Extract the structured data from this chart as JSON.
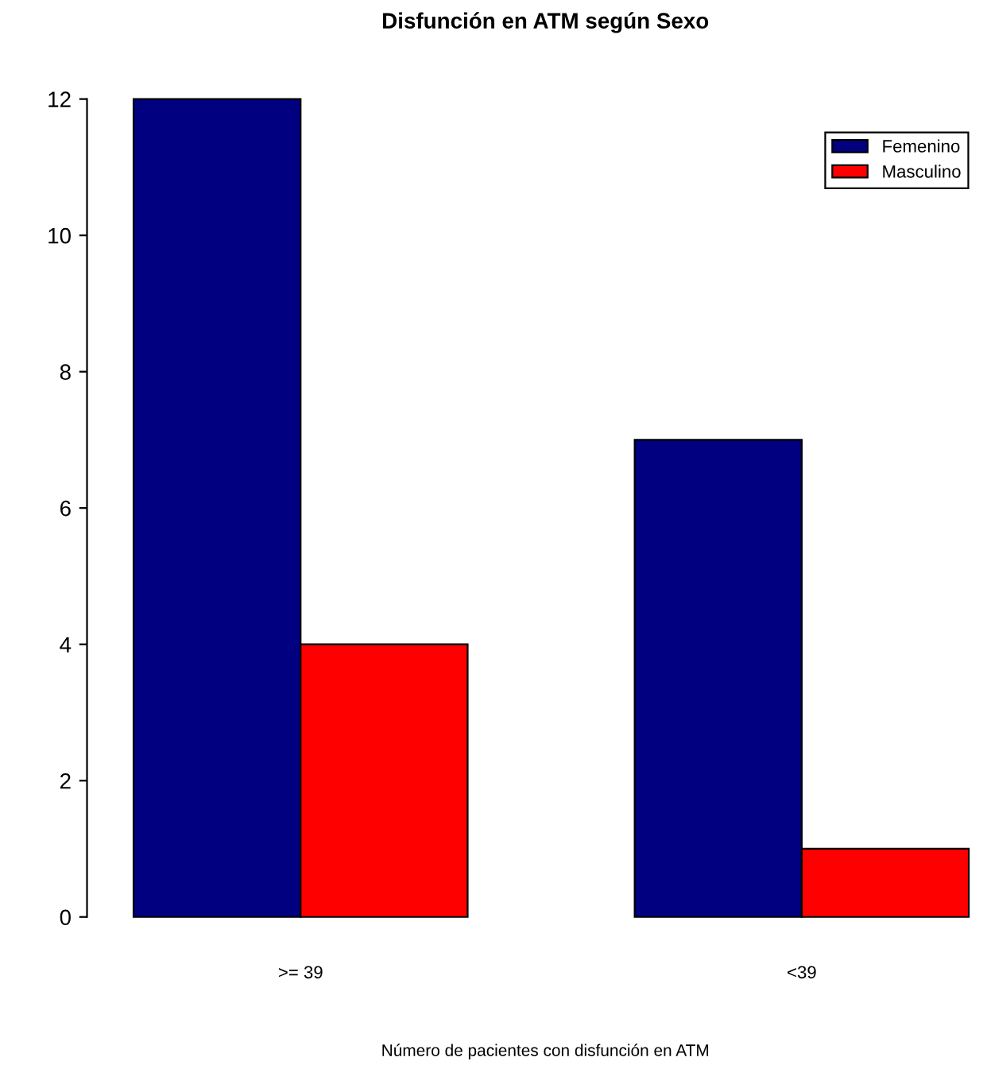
{
  "chart_data": {
    "type": "bar",
    "title": "Disfunción en ATM según Sexo",
    "xlabel": "Número de pacientes con disfunción en ATM",
    "categories": [
      ">= 39",
      "<39"
    ],
    "series": [
      {
        "name": "Femenino",
        "color": "#000080",
        "values": [
          12,
          7
        ]
      },
      {
        "name": "Masculino",
        "color": "#ff0000",
        "values": [
          4,
          1
        ]
      }
    ],
    "ylim": [
      0,
      12
    ],
    "yticks": [
      0,
      2,
      4,
      6,
      8,
      10,
      12
    ],
    "grid": false,
    "legend": "top right"
  }
}
